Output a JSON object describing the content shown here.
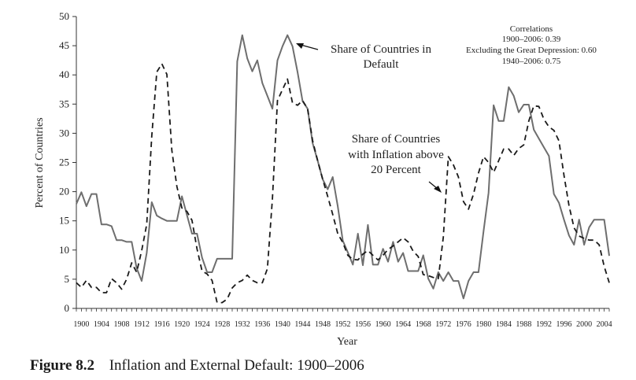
{
  "caption": {
    "label": "Figure 8.2",
    "text": "Inflation and External Default: 1900–2006"
  },
  "chart_data": {
    "type": "line",
    "xlabel": "Year",
    "ylabel": "Percent of Countries",
    "xlim": [
      1899,
      2005
    ],
    "ylim": [
      0,
      50
    ],
    "yticks": [
      0,
      5,
      10,
      15,
      20,
      25,
      30,
      35,
      40,
      45,
      50
    ],
    "xticks": [
      1900,
      1904,
      1908,
      1912,
      1916,
      1920,
      1924,
      1928,
      1932,
      1936,
      1940,
      1944,
      1948,
      1952,
      1956,
      1960,
      1964,
      1968,
      1972,
      1976,
      1980,
      1984,
      1988,
      1992,
      1996,
      2000,
      2004
    ],
    "grid": false,
    "annotations": [
      {
        "id": "default_label",
        "lines": [
          "Share of Countries in",
          "Default"
        ]
      },
      {
        "id": "inflation_label",
        "lines": [
          "Share of Countries",
          "with Inflation above",
          "20 Percent"
        ]
      },
      {
        "id": "correlations",
        "lines": [
          "Correlations",
          "1900–2006: 0.39",
          "Excluding the Great Depression: 0.60",
          "1940–2006: 0.75"
        ]
      }
    ],
    "series": [
      {
        "name": "Share of Countries in Default",
        "style": "solid",
        "color": "#6e6e6e",
        "points": [
          [
            1899,
            17.9
          ],
          [
            1900,
            19.9
          ],
          [
            1901,
            17.5
          ],
          [
            1902,
            19.6
          ],
          [
            1903,
            19.6
          ],
          [
            1904,
            14.4
          ],
          [
            1905,
            14.4
          ],
          [
            1906,
            14.1
          ],
          [
            1907,
            11.7
          ],
          [
            1908,
            11.7
          ],
          [
            1909,
            11.4
          ],
          [
            1910,
            11.4
          ],
          [
            1911,
            6.9
          ],
          [
            1912,
            4.7
          ],
          [
            1913,
            9.5
          ],
          [
            1914,
            18.2
          ],
          [
            1915,
            15.9
          ],
          [
            1916,
            15.4
          ],
          [
            1917,
            15.0
          ],
          [
            1918,
            15.0
          ],
          [
            1919,
            15.0
          ],
          [
            1920,
            19.2
          ],
          [
            1921,
            16.0
          ],
          [
            1922,
            12.8
          ],
          [
            1923,
            12.8
          ],
          [
            1924,
            8.7
          ],
          [
            1925,
            6.2
          ],
          [
            1926,
            6.2
          ],
          [
            1927,
            8.5
          ],
          [
            1928,
            8.5
          ],
          [
            1929,
            8.5
          ],
          [
            1930,
            8.5
          ],
          [
            1931,
            42.3
          ],
          [
            1932,
            46.8
          ],
          [
            1933,
            42.8
          ],
          [
            1934,
            40.6
          ],
          [
            1935,
            42.5
          ],
          [
            1936,
            38.6
          ],
          [
            1937,
            36.4
          ],
          [
            1938,
            34.2
          ],
          [
            1939,
            42.5
          ],
          [
            1940,
            44.9
          ],
          [
            1941,
            46.8
          ],
          [
            1942,
            44.9
          ],
          [
            1943,
            40.5
          ],
          [
            1944,
            35.5
          ],
          [
            1945,
            34.2
          ],
          [
            1946,
            28.3
          ],
          [
            1947,
            25.3
          ],
          [
            1948,
            22.1
          ],
          [
            1949,
            20.4
          ],
          [
            1950,
            22.5
          ],
          [
            1951,
            17.5
          ],
          [
            1952,
            11.6
          ],
          [
            1953,
            9.6
          ],
          [
            1954,
            7.5
          ],
          [
            1955,
            12.8
          ],
          [
            1956,
            7.4
          ],
          [
            1957,
            14.3
          ],
          [
            1958,
            7.5
          ],
          [
            1959,
            7.5
          ],
          [
            1960,
            10.2
          ],
          [
            1961,
            8.0
          ],
          [
            1962,
            11.4
          ],
          [
            1963,
            8.0
          ],
          [
            1964,
            9.5
          ],
          [
            1965,
            6.4
          ],
          [
            1966,
            6.4
          ],
          [
            1967,
            6.4
          ],
          [
            1968,
            9.1
          ],
          [
            1969,
            5.1
          ],
          [
            1970,
            3.4
          ],
          [
            1971,
            6.2
          ],
          [
            1972,
            4.7
          ],
          [
            1973,
            6.2
          ],
          [
            1974,
            4.7
          ],
          [
            1975,
            4.7
          ],
          [
            1976,
            1.7
          ],
          [
            1977,
            4.7
          ],
          [
            1978,
            6.2
          ],
          [
            1979,
            6.2
          ],
          [
            1980,
            13.2
          ],
          [
            1981,
            19.8
          ],
          [
            1982,
            34.8
          ],
          [
            1983,
            32.1
          ],
          [
            1984,
            32.1
          ],
          [
            1985,
            37.9
          ],
          [
            1986,
            36.4
          ],
          [
            1987,
            33.6
          ],
          [
            1988,
            34.9
          ],
          [
            1989,
            34.9
          ],
          [
            1990,
            30.6
          ],
          [
            1991,
            29.1
          ],
          [
            1992,
            27.6
          ],
          [
            1993,
            26.1
          ],
          [
            1994,
            19.6
          ],
          [
            1995,
            18.1
          ],
          [
            1996,
            15.2
          ],
          [
            1997,
            12.5
          ],
          [
            1998,
            10.9
          ],
          [
            1999,
            15.2
          ],
          [
            2000,
            10.9
          ],
          [
            2001,
            13.9
          ],
          [
            2002,
            15.2
          ],
          [
            2003,
            15.2
          ],
          [
            2004,
            15.2
          ],
          [
            2005,
            9.0
          ]
        ]
      },
      {
        "name": "Share of Countries with Inflation above 20 Percent",
        "style": "dashed",
        "color": "#1a1a1a",
        "points": [
          [
            1899,
            4.4
          ],
          [
            1900,
            3.6
          ],
          [
            1901,
            4.8
          ],
          [
            1902,
            3.6
          ],
          [
            1903,
            3.6
          ],
          [
            1904,
            2.7
          ],
          [
            1905,
            2.7
          ],
          [
            1906,
            5.1
          ],
          [
            1907,
            4.4
          ],
          [
            1908,
            3.3
          ],
          [
            1909,
            5.0
          ],
          [
            1910,
            7.8
          ],
          [
            1911,
            6.2
          ],
          [
            1912,
            9.9
          ],
          [
            1913,
            14.4
          ],
          [
            1914,
            29.5
          ],
          [
            1915,
            40.5
          ],
          [
            1916,
            41.9
          ],
          [
            1917,
            40.1
          ],
          [
            1918,
            27.1
          ],
          [
            1919,
            20.9
          ],
          [
            1920,
            17.2
          ],
          [
            1921,
            16.6
          ],
          [
            1922,
            15.1
          ],
          [
            1923,
            10.2
          ],
          [
            1924,
            6.4
          ],
          [
            1925,
            5.9
          ],
          [
            1926,
            4.8
          ],
          [
            1927,
            1.0
          ],
          [
            1928,
            1.0
          ],
          [
            1929,
            1.6
          ],
          [
            1930,
            3.5
          ],
          [
            1931,
            4.4
          ],
          [
            1932,
            4.8
          ],
          [
            1933,
            5.7
          ],
          [
            1934,
            4.8
          ],
          [
            1935,
            4.4
          ],
          [
            1936,
            4.4
          ],
          [
            1937,
            6.8
          ],
          [
            1938,
            18.8
          ],
          [
            1939,
            35.6
          ],
          [
            1940,
            37.5
          ],
          [
            1941,
            39.3
          ],
          [
            1942,
            35.2
          ],
          [
            1943,
            34.8
          ],
          [
            1944,
            35.6
          ],
          [
            1945,
            34.2
          ],
          [
            1946,
            28.7
          ],
          [
            1947,
            25.3
          ],
          [
            1948,
            22.1
          ],
          [
            1949,
            19.2
          ],
          [
            1950,
            16.1
          ],
          [
            1951,
            12.8
          ],
          [
            1952,
            11.3
          ],
          [
            1953,
            9.1
          ],
          [
            1954,
            8.4
          ],
          [
            1955,
            8.3
          ],
          [
            1956,
            9.3
          ],
          [
            1957,
            9.9
          ],
          [
            1958,
            9.1
          ],
          [
            1959,
            8.3
          ],
          [
            1960,
            9.1
          ],
          [
            1961,
            10.1
          ],
          [
            1962,
            10.7
          ],
          [
            1963,
            11.4
          ],
          [
            1964,
            12.1
          ],
          [
            1965,
            11.4
          ],
          [
            1966,
            9.8
          ],
          [
            1967,
            8.9
          ],
          [
            1968,
            5.8
          ],
          [
            1969,
            5.6
          ],
          [
            1970,
            5.3
          ],
          [
            1971,
            5.1
          ],
          [
            1972,
            12.2
          ],
          [
            1973,
            26.0
          ],
          [
            1974,
            24.6
          ],
          [
            1975,
            22.5
          ],
          [
            1976,
            18.3
          ],
          [
            1977,
            17.0
          ],
          [
            1978,
            19.6
          ],
          [
            1979,
            23.2
          ],
          [
            1980,
            26.0
          ],
          [
            1981,
            25.0
          ],
          [
            1982,
            23.3
          ],
          [
            1983,
            25.3
          ],
          [
            1984,
            27.3
          ],
          [
            1985,
            27.3
          ],
          [
            1986,
            26.2
          ],
          [
            1987,
            27.4
          ],
          [
            1988,
            28.0
          ],
          [
            1989,
            32.1
          ],
          [
            1990,
            34.7
          ],
          [
            1991,
            34.6
          ],
          [
            1992,
            32.4
          ],
          [
            1993,
            31.1
          ],
          [
            1994,
            30.5
          ],
          [
            1995,
            28.7
          ],
          [
            1996,
            22.8
          ],
          [
            1997,
            17.6
          ],
          [
            1998,
            13.8
          ],
          [
            1999,
            12.4
          ],
          [
            2000,
            12.0
          ],
          [
            2001,
            11.7
          ],
          [
            2002,
            11.7
          ],
          [
            2003,
            10.9
          ],
          [
            2004,
            7.2
          ],
          [
            2005,
            4.4
          ]
        ]
      }
    ]
  }
}
